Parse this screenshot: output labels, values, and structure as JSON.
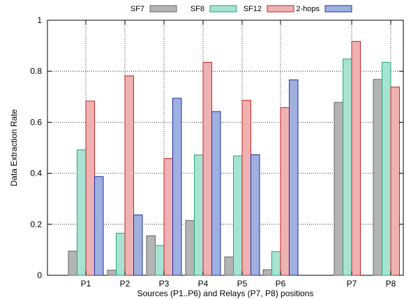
{
  "chart_data": {
    "type": "bar",
    "title": "",
    "xlabel": "Sources (P1..P6) and Relays (P7, P8) positions",
    "ylabel": "Data Extraction Rate",
    "ylim": [
      0,
      1
    ],
    "yticks": [
      "0",
      "0.2",
      "0.4",
      "0.6",
      "0.8",
      "1"
    ],
    "ytick_values": [
      0,
      0.2,
      0.4,
      0.6,
      0.8,
      1
    ],
    "grid": true,
    "legend_position": "top-center",
    "categories": [
      "P1",
      "P2",
      "P3",
      "P4",
      "P5",
      "P6",
      "P7",
      "P8"
    ],
    "series": [
      {
        "name": "SF7",
        "color": "#b4b4b4",
        "values": [
          0.095,
          0.02,
          0.155,
          0.215,
          0.072,
          0.022,
          0.678,
          0.768
        ]
      },
      {
        "name": "SF8",
        "color": "#a6e3d2",
        "values": [
          0.492,
          0.165,
          0.117,
          0.472,
          0.468,
          0.093,
          0.848,
          0.835
        ]
      },
      {
        "name": "SF12",
        "color": "#eeb2b2",
        "values": [
          0.683,
          0.782,
          0.458,
          0.835,
          0.686,
          0.657,
          0.917,
          0.738
        ]
      },
      {
        "name": "2-hops",
        "color": "#9fb0df",
        "values": [
          0.387,
          0.237,
          0.694,
          0.642,
          0.473,
          0.766,
          null,
          null
        ]
      }
    ],
    "border_colors": [
      "#666666",
      "#2aa37a",
      "#cc2222",
      "#1b2fa8"
    ]
  }
}
